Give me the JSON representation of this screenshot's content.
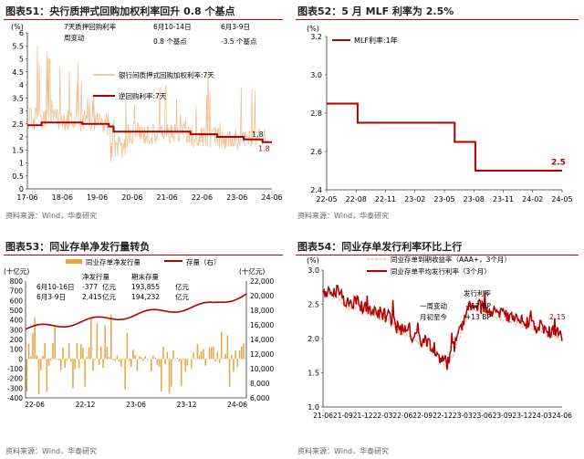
{
  "colors": {
    "dark_red": "#b00000",
    "light_orange": "#f2b88a",
    "bar_orange": "#e8a33c",
    "axis": "#333333",
    "rule": "#cc0000"
  },
  "chart_data": [
    {
      "id": "c51",
      "type": "line",
      "title": "图表51：央行质押式回购加权利率回升 0.8 个基点",
      "source": "资料来源：Wind，华泰研究",
      "unit": "(%)",
      "ylim": [
        0,
        6
      ],
      "yticks": [
        "0",
        "0.5",
        "1",
        "1.5",
        "2",
        "2.5",
        "3",
        "3.5",
        "4",
        "4.5",
        "5",
        "5.5",
        "6"
      ],
      "xticks": [
        "17-06",
        "18-06",
        "19-06",
        "20-06",
        "21-06",
        "22-06",
        "23-06",
        "24-06"
      ],
      "series": [
        {
          "name": "银行间质押式回购加权利率:7天",
          "end_label": "1.8"
        },
        {
          "name": "逆回购利率:7天",
          "end_label": "1.8",
          "steps": [
            [
              0,
              2.45
            ],
            [
              0.45,
              2.55
            ],
            [
              1.6,
              2.55
            ],
            [
              1.75,
              2.5
            ],
            [
              2.6,
              2.4
            ],
            [
              2.75,
              2.2
            ],
            [
              3.15,
              2.2
            ],
            [
              5.2,
              2.1
            ],
            [
              6.05,
              2.0
            ],
            [
              6.9,
              1.9
            ],
            [
              7.5,
              1.8
            ],
            [
              7.8,
              1.8
            ]
          ]
        }
      ],
      "annotation": {
        "row1": [
          "7天质押回购利率",
          "6月10-14日",
          "6月3-9日"
        ],
        "row2": [
          "周变动",
          "0.8  个基点",
          "-3.5  个基点"
        ]
      }
    },
    {
      "id": "c52",
      "type": "line",
      "title": "图表52：5 月 MLF 利率为 2.5%",
      "source": "资料来源：Wind，华泰研究",
      "unit": "(%)",
      "ylim": [
        2.4,
        3.2
      ],
      "yticks": [
        "2.4",
        "2.6",
        "2.8",
        "3.0",
        "3.2"
      ],
      "xticks": [
        "22-05",
        "22-08",
        "22-11",
        "23-02",
        "23-05",
        "23-08",
        "23-11",
        "24-02",
        "24-05"
      ],
      "series": [
        {
          "name": "MLF利率:1年",
          "end_label": "2.5",
          "steps": [
            [
              0,
              2.85
            ],
            [
              1.05,
              2.75
            ],
            [
              4.35,
              2.65
            ],
            [
              5.05,
              2.5
            ],
            [
              8.0,
              2.5
            ]
          ]
        }
      ]
    },
    {
      "id": "c53",
      "type": "bar+line",
      "title": "图表53：同业存单净发行量转负",
      "source": "资料来源：Wind，华泰研究",
      "unit_left": "(十亿元)",
      "unit_right": "(十亿元)",
      "ylim_left": [
        -400,
        800
      ],
      "yticks_left": [
        "-400",
        "-300",
        "-200",
        "-100",
        "0",
        "100",
        "200",
        "300",
        "400",
        "500",
        "600",
        "700",
        "800"
      ],
      "ylim_right": [
        6000,
        22000
      ],
      "yticks_right": [
        "6,000",
        "8,000",
        "10,000",
        "12,000",
        "14,000",
        "16,000",
        "18,000",
        "20,000",
        "22,000"
      ],
      "xticks": [
        "22-06",
        "22-12",
        "23-06",
        "23-12",
        "24-06"
      ],
      "series": [
        {
          "name": "同业存单净发行量",
          "axis": "left"
        },
        {
          "name": "存量（右）",
          "axis": "right"
        }
      ],
      "table": {
        "headers": [
          "",
          "净发行量",
          "",
          "期末存量",
          ""
        ],
        "rows": [
          [
            "6月10-16日",
            "-377",
            "亿元",
            "193,855",
            "亿元"
          ],
          [
            "6月3-9日",
            "2,415",
            "亿元",
            "194,232",
            "亿元"
          ]
        ]
      }
    },
    {
      "id": "c54",
      "type": "line",
      "title": "图表54：同业存单发行利率环比上行",
      "source": "资料来源：Wind，华泰研究",
      "unit": "(%)",
      "ylim": [
        1.0,
        3.0
      ],
      "yticks": [
        "1.0",
        "1.5",
        "2.0",
        "2.5",
        "3.0"
      ],
      "xticks": [
        "21-06",
        "21-09",
        "21-12",
        "22-03",
        "22-06",
        "22-09",
        "22-12",
        "23-03",
        "23-06",
        "23-09",
        "23-12",
        "24-03",
        "24-06"
      ],
      "series": [
        {
          "name": "同业存单到期收益率（AAA+，3个月）"
        },
        {
          "name": "同业存单平均发行利率（3个月）",
          "end_label": "2.15"
        }
      ],
      "annotation": {
        "header": "发行利率",
        "rows": [
          [
            "一周变动",
            "+17 BP"
          ],
          [
            "月初至今",
            "+13 BP"
          ]
        ]
      }
    }
  ]
}
